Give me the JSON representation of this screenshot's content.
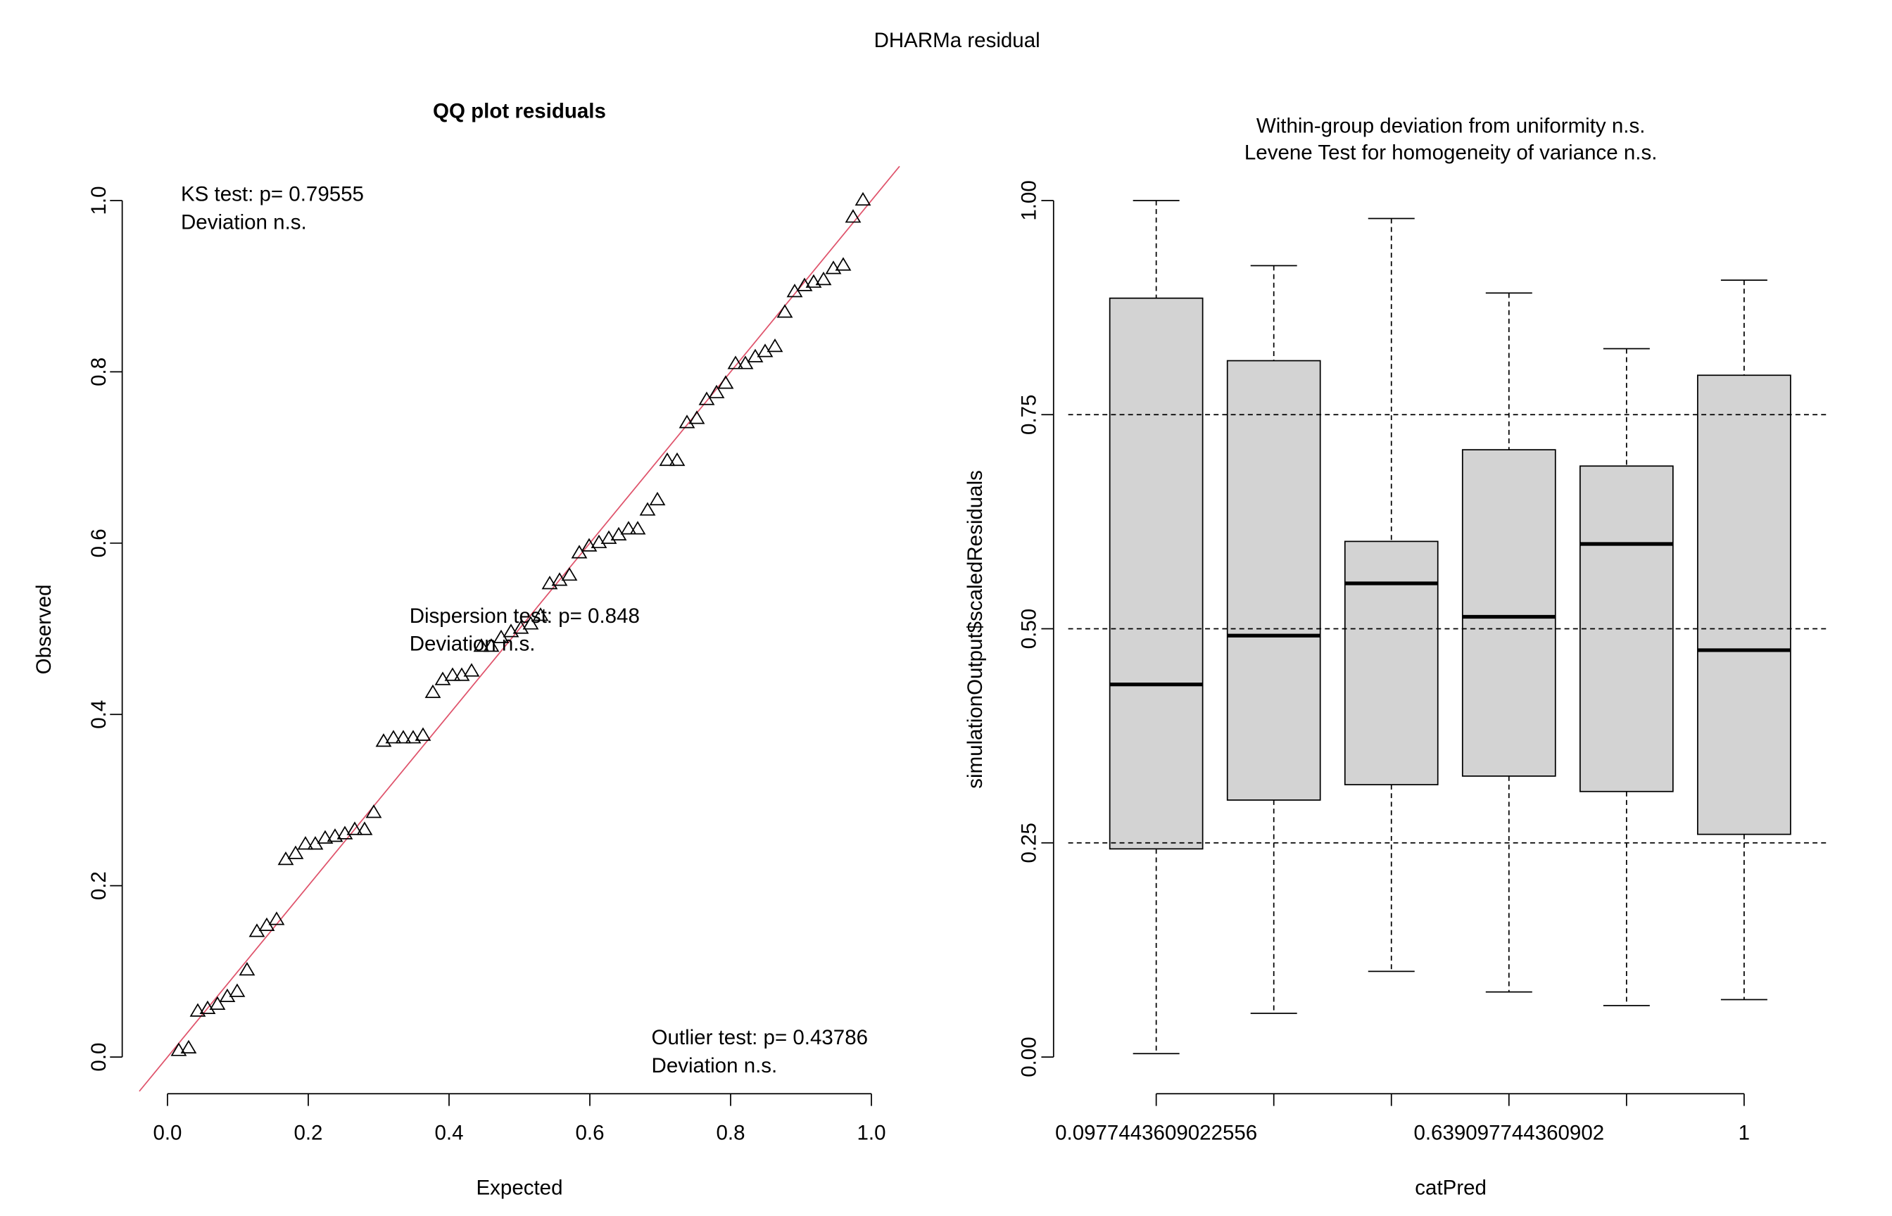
{
  "title": "DHARMa residual",
  "chart_data": [
    {
      "type": "scatter",
      "title": "QQ plot residuals",
      "x_label": "Expected",
      "y_label": "Observed",
      "marker": "triangle-open",
      "color": "#000000",
      "x": [
        0.016,
        0.03,
        0.043,
        0.057,
        0.071,
        0.085,
        0.099,
        0.113,
        0.127,
        0.141,
        0.155,
        0.168,
        0.182,
        0.196,
        0.21,
        0.224,
        0.238,
        0.252,
        0.266,
        0.28,
        0.293,
        0.307,
        0.321,
        0.335,
        0.349,
        0.363,
        0.377,
        0.391,
        0.405,
        0.418,
        0.432,
        0.446,
        0.46,
        0.474,
        0.488,
        0.502,
        0.516,
        0.53,
        0.543,
        0.557,
        0.571,
        0.585,
        0.599,
        0.613,
        0.627,
        0.641,
        0.655,
        0.668,
        0.682,
        0.696,
        0.71,
        0.724,
        0.738,
        0.752,
        0.766,
        0.78,
        0.793,
        0.807,
        0.821,
        0.835,
        0.849,
        0.863,
        0.877,
        0.891,
        0.905,
        0.918,
        0.932,
        0.946,
        0.96,
        0.974,
        0.988
      ],
      "y": [
        0.007,
        0.01,
        0.053,
        0.056,
        0.061,
        0.07,
        0.076,
        0.101,
        0.146,
        0.153,
        0.16,
        0.23,
        0.237,
        0.248,
        0.248,
        0.255,
        0.257,
        0.26,
        0.265,
        0.265,
        0.285,
        0.368,
        0.372,
        0.372,
        0.372,
        0.375,
        0.425,
        0.44,
        0.445,
        0.445,
        0.45,
        0.479,
        0.479,
        0.489,
        0.496,
        0.5,
        0.505,
        0.515,
        0.552,
        0.556,
        0.562,
        0.588,
        0.596,
        0.6,
        0.605,
        0.609,
        0.616,
        0.616,
        0.638,
        0.65,
        0.696,
        0.696,
        0.74,
        0.745,
        0.767,
        0.775,
        0.786,
        0.809,
        0.809,
        0.817,
        0.823,
        0.829,
        0.869,
        0.893,
        0.9,
        0.904,
        0.907,
        0.92,
        0.924,
        0.98,
        1.0
      ],
      "reference_line": {
        "intercept": 0,
        "slope": 1,
        "color": "#df536b"
      },
      "xlim": [
        -0.04,
        1.04
      ],
      "ylim": [
        -0.04,
        1.04
      ],
      "xticks": [
        {
          "value": 0,
          "label": "0.0"
        },
        0.2,
        0.4,
        0.6,
        0.8,
        {
          "value": 1,
          "label": "1.0"
        }
      ],
      "yticks": [
        {
          "value": 0,
          "label": "0.0"
        },
        0.2,
        0.4,
        0.6,
        0.8,
        {
          "value": 1,
          "label": "1.0"
        }
      ],
      "annotations": [
        [
          "KS test: p= 0.79555",
          "Deviation  n.s."
        ],
        [
          "Dispersion test: p= 0.848",
          "Deviation  n.s."
        ],
        [
          "Outlier test: p= 0.43786",
          "Deviation  n.s."
        ]
      ]
    },
    {
      "type": "boxplot",
      "title": [
        "Within-group deviation from uniformity n.s.",
        "Levene Test for homogeneity of variance n.s."
      ],
      "x_label": "catPred",
      "y_label": "simulationOutput$scaledResiduals",
      "color": "#d3d3d3",
      "categories": [
        "0.0977443609022556",
        null,
        null,
        "0.639097744360902",
        null,
        "1"
      ],
      "boxes": [
        {
          "whislo": 0.004,
          "q1": 0.243,
          "median": 0.435,
          "q3": 0.886,
          "whishi": 1.0
        },
        {
          "whislo": 0.051,
          "q1": 0.3,
          "median": 0.492,
          "q3": 0.813,
          "whishi": 0.924
        },
        {
          "whislo": 0.1,
          "q1": 0.318,
          "median": 0.553,
          "q3": 0.602,
          "whishi": 0.979
        },
        {
          "whislo": 0.076,
          "q1": 0.328,
          "median": 0.514,
          "q3": 0.709,
          "whishi": 0.892
        },
        {
          "whislo": 0.06,
          "q1": 0.31,
          "median": 0.599,
          "q3": 0.69,
          "whishi": 0.827
        },
        {
          "whislo": 0.067,
          "q1": 0.26,
          "median": 0.475,
          "q3": 0.796,
          "whishi": 0.907
        }
      ],
      "ylim": [
        -0.04,
        1.04
      ],
      "yticks": [
        {
          "value": 0,
          "label": "0.00"
        },
        0.25,
        {
          "value": 0.5,
          "label": "0.50"
        },
        0.75,
        {
          "value": 1,
          "label": "1.00"
        }
      ],
      "hlines": [
        0.25,
        0.5,
        0.75
      ],
      "hline_style": "dashed"
    }
  ]
}
